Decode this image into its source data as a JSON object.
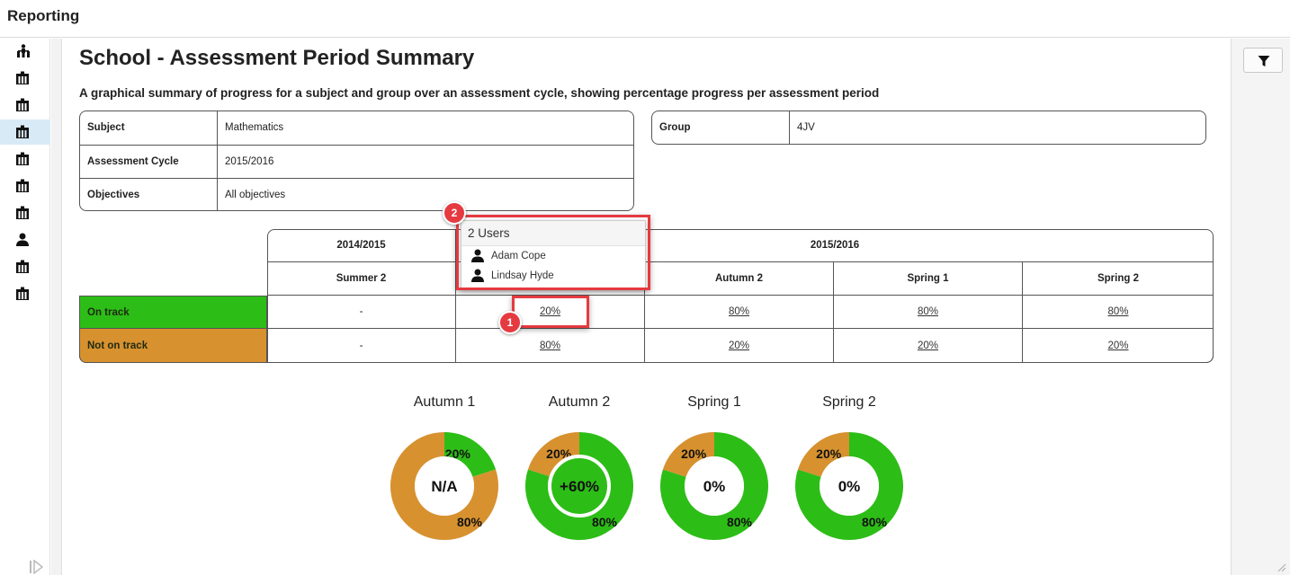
{
  "app": {
    "title": "Reporting"
  },
  "sidebar": {
    "items": [
      {
        "icon": "org-chart-icon",
        "active": false
      },
      {
        "icon": "building-icon",
        "active": false
      },
      {
        "icon": "building-icon",
        "active": false
      },
      {
        "icon": "building-icon",
        "active": true
      },
      {
        "icon": "building-icon",
        "active": false
      },
      {
        "icon": "building-icon",
        "active": false
      },
      {
        "icon": "building-icon",
        "active": false
      },
      {
        "icon": "user-icon",
        "active": false
      },
      {
        "icon": "building-icon",
        "active": false
      },
      {
        "icon": "building-icon",
        "active": false
      }
    ]
  },
  "page": {
    "title": "School - Assessment Period Summary",
    "subtitle": "A graphical summary of progress for a subject and group over an assessment cycle, showing percentage progress per assessment period"
  },
  "filters": {
    "subject_label": "Subject",
    "subject_value": "Mathematics",
    "cycle_label": "Assessment Cycle",
    "cycle_value": "2015/2016",
    "objectives_label": "Objectives",
    "objectives_value": "All objectives",
    "group_label": "Group",
    "group_value": "4JV"
  },
  "table": {
    "years": [
      "2014/2015",
      "2015/2016"
    ],
    "periods": [
      "Summer 2",
      "Autumn 1",
      "Autumn 2",
      "Spring 1",
      "Spring 2"
    ],
    "rows": [
      {
        "label": "On track",
        "color": "#2dbd17",
        "values": [
          "-",
          "20%",
          "80%",
          "80%",
          "80%"
        ]
      },
      {
        "label": "Not on track",
        "color": "#d7912f",
        "values": [
          "-",
          "80%",
          "20%",
          "20%",
          "20%"
        ]
      }
    ]
  },
  "tooltip": {
    "title": "2 Users",
    "users": [
      "Adam Cope",
      "Lindsay Hyde"
    ]
  },
  "annotations": {
    "marker1": "1",
    "marker2": "2",
    "color": "#e53a40"
  },
  "chart_data": {
    "type": "pie",
    "charts": [
      {
        "title": "Autumn 1",
        "center": "N/A",
        "slices": [
          {
            "label": "20%",
            "value": 20,
            "color": "#2dbd17"
          },
          {
            "label": "80%",
            "value": 80,
            "color": "#d7912f"
          }
        ]
      },
      {
        "title": "Autumn 2",
        "center": "+60%",
        "highlighted": true,
        "slices": [
          {
            "label": "80%",
            "value": 80,
            "color": "#2dbd17"
          },
          {
            "label": "20%",
            "value": 20,
            "color": "#d7912f"
          }
        ]
      },
      {
        "title": "Spring 1",
        "center": "0%",
        "slices": [
          {
            "label": "80%",
            "value": 80,
            "color": "#2dbd17"
          },
          {
            "label": "20%",
            "value": 20,
            "color": "#d7912f"
          }
        ]
      },
      {
        "title": "Spring 2",
        "center": "0%",
        "slices": [
          {
            "label": "80%",
            "value": 80,
            "color": "#2dbd17"
          },
          {
            "label": "20%",
            "value": 20,
            "color": "#d7912f"
          }
        ]
      }
    ]
  }
}
